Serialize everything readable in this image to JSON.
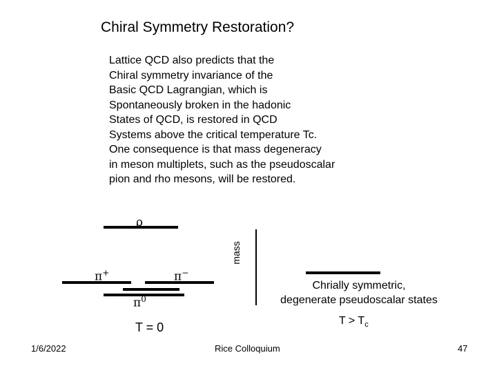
{
  "title": "Chiral Symmetry Restoration?",
  "body_lines": [
    "Lattice QCD also predicts that the",
    "Chiral symmetry invariance of the",
    "Basic QCD Lagrangian, which is",
    "Spontaneously broken in the hadonic",
    "States of QCD, is restored in QCD",
    "Systems above the critical temperature Tc.",
    "One consequence is that mass degeneracy",
    "in meson multiplets, such as the pseudoscalar",
    "pion and rho mesons, will be restored."
  ],
  "diagram": {
    "rho_label": "ρ",
    "pi_plus_label": "π",
    "pi_plus_sup": "+",
    "pi_minus_label": "π",
    "pi_minus_sup": "−",
    "pi_zero_label": "π",
    "pi_zero_sup": "0",
    "axis_label": "mass",
    "left_condition": "T = 0",
    "right_condition_main": "T > T",
    "right_condition_sub": "c",
    "right_caption_line1": "Chrially symmetric,",
    "right_caption_line2": "degenerate pseudoscalar states"
  },
  "footer": {
    "date": "1/6/2022",
    "center": "Rice Colloquium",
    "page": "47"
  }
}
